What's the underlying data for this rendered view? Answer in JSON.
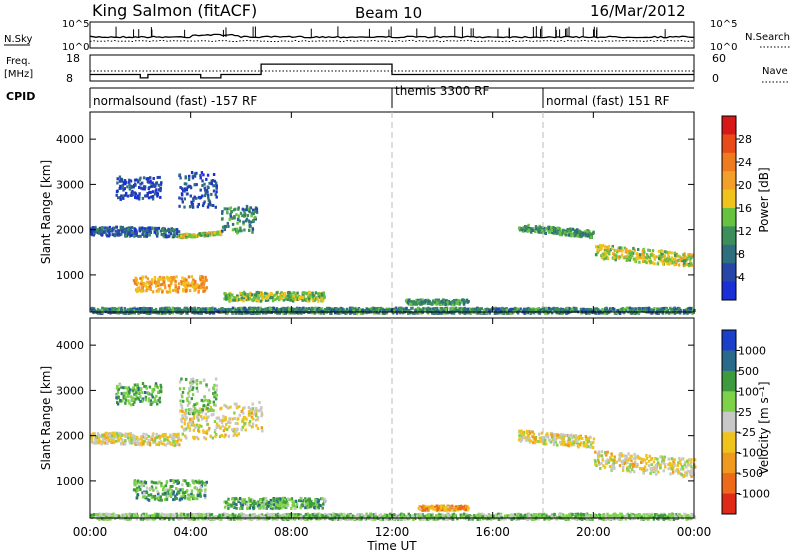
{
  "header": {
    "station": "King Salmon (fitACF)",
    "beam": "Beam 10",
    "date": "16/Mar/2012"
  },
  "top_panels": {
    "nsky_label": "N.Sky",
    "nsky_ticks": [
      "10^5",
      "10^0"
    ],
    "nsearch_label": "N.Search",
    "nsearch_ticks": [
      "10^5",
      "10^0"
    ],
    "freq_label_1": "Freq.",
    "freq_label_2": "[MHz]",
    "freq_ticks": [
      "18",
      "8"
    ],
    "nave_label": "Nave",
    "nave_ticks": [
      "60",
      "0"
    ],
    "cpid_label": "CPID",
    "cpid_segments": [
      {
        "label": "normalsound (fast) -157 RF",
        "start_hour": 0
      },
      {
        "label": "themis 3300 RF",
        "start_hour": 12
      },
      {
        "label": "normal (fast) 151 RF",
        "start_hour": 18
      }
    ],
    "freq_levels_mhz": [
      {
        "from": 0,
        "to": 2.0,
        "value": 10.5
      },
      {
        "from": 2.0,
        "to": 2.3,
        "value": 9.2
      },
      {
        "from": 2.3,
        "to": 4.4,
        "value": 10.5
      },
      {
        "from": 4.4,
        "to": 5.2,
        "value": 9.2
      },
      {
        "from": 5.2,
        "to": 6.8,
        "value": 10.5
      },
      {
        "from": 6.8,
        "to": 12.0,
        "value": 14.5
      },
      {
        "from": 12.0,
        "to": 24.0,
        "value": 10.5
      }
    ]
  },
  "chart_data": [
    {
      "type": "heatmap",
      "title": "Power",
      "xlabel": "",
      "ylabel": "Slant Range [km]",
      "xlim_hours": [
        0,
        24
      ],
      "ylim": [
        180,
        4600
      ],
      "yticks": [
        "1000",
        "2000",
        "3000",
        "4000"
      ],
      "colorbar_label": "Power [dB]",
      "colorbar_ticks": [
        "4",
        "8",
        "12",
        "16",
        "20",
        "24",
        "28"
      ],
      "scatter_regions": [
        {
          "from": 0.0,
          "to": 3.5,
          "r0": 1900,
          "r1": 2100,
          "dr": -10,
          "level": 0.2
        },
        {
          "from": 3.5,
          "to": 5.2,
          "r0": 1850,
          "r1": 1920,
          "dr": 40,
          "level": 0.5
        },
        {
          "from": 5.2,
          "to": 6.6,
          "r0": 1900,
          "r1": 2500,
          "dr": 60,
          "level": 0.3
        },
        {
          "from": 1.0,
          "to": 2.8,
          "r0": 2700,
          "r1": 3200,
          "dr": 0,
          "level": 0.15
        },
        {
          "from": 3.5,
          "to": 5.0,
          "r0": 2500,
          "r1": 3300,
          "dr": 0,
          "level": 0.15
        },
        {
          "from": 1.7,
          "to": 4.6,
          "r0": 650,
          "r1": 1000,
          "dr": 0,
          "level": 0.65
        },
        {
          "from": 5.3,
          "to": 9.3,
          "r0": 450,
          "r1": 650,
          "dr": 0,
          "level": 0.45
        },
        {
          "from": 12.5,
          "to": 15.0,
          "r0": 380,
          "r1": 480,
          "dr": 0,
          "level": 0.35
        },
        {
          "from": 17.0,
          "to": 20.0,
          "r0": 2000,
          "r1": 2150,
          "dr": -50,
          "level": 0.35
        },
        {
          "from": 20.0,
          "to": 24.0,
          "r0": 1400,
          "r1": 1700,
          "dr": -50,
          "level": 0.5
        },
        {
          "from": 0.0,
          "to": 24.0,
          "r0": 180,
          "r1": 300,
          "dr": 0,
          "level": 0.3
        }
      ]
    },
    {
      "type": "heatmap",
      "title": "Velocity",
      "xlabel": "Time UT",
      "ylabel": "Slant Range [km]",
      "xlim_hours": [
        0,
        24
      ],
      "ylim": [
        180,
        4600
      ],
      "yticks": [
        "1000",
        "2000",
        "3000",
        "4000"
      ],
      "xticks": [
        "00:00",
        "04:00",
        "08:00",
        "12:00",
        "16:00",
        "20:00",
        "00:00"
      ],
      "colorbar_label": "Velocity [m s⁻¹]",
      "colorbar_ticks": [
        "1000",
        "500",
        "100",
        "25",
        "-25",
        "-100",
        "-500",
        "-1000"
      ],
      "scatter_regions": [
        {
          "from": 0.0,
          "to": 3.5,
          "r0": 1850,
          "r1": 2100,
          "dr": -10,
          "level": 0.55
        },
        {
          "from": 3.5,
          "to": 6.8,
          "r0": 1900,
          "r1": 2600,
          "dr": 60,
          "level": 0.55
        },
        {
          "from": 1.0,
          "to": 2.8,
          "r0": 2700,
          "r1": 3200,
          "dr": 0,
          "level": 0.3
        },
        {
          "from": 3.5,
          "to": 5.0,
          "r0": 2500,
          "r1": 3300,
          "dr": 0,
          "level": 0.4
        },
        {
          "from": 1.7,
          "to": 4.6,
          "r0": 600,
          "r1": 1050,
          "dr": 0,
          "level": 0.32
        },
        {
          "from": 5.3,
          "to": 9.3,
          "r0": 420,
          "r1": 650,
          "dr": 0,
          "level": 0.32
        },
        {
          "from": 13.0,
          "to": 15.0,
          "r0": 380,
          "r1": 480,
          "dr": 0,
          "level": 0.7
        },
        {
          "from": 17.0,
          "to": 20.0,
          "r0": 1900,
          "r1": 2150,
          "dr": -50,
          "level": 0.55
        },
        {
          "from": 20.0,
          "to": 24.0,
          "r0": 1300,
          "r1": 1700,
          "dr": -50,
          "level": 0.55
        },
        {
          "from": 0.0,
          "to": 24.0,
          "r0": 180,
          "r1": 300,
          "dr": 0,
          "level": 0.4
        }
      ]
    }
  ],
  "colors": {
    "power_scale": [
      "#1a2fd6",
      "#2747a8",
      "#2f6e7e",
      "#3c8e5a",
      "#67c23f",
      "#f0c21c",
      "#f3a02a",
      "#ef7b1f",
      "#e84a1a",
      "#d71818"
    ],
    "velocity_scale": [
      "#1b3fc8",
      "#2a6a8a",
      "#3d9b3d",
      "#7ed249",
      "#c8c8c8",
      "#f0c21c",
      "#ef9a1f",
      "#ec6a1a",
      "#e02a18"
    ],
    "dashed_line": "#bbbbbb"
  }
}
